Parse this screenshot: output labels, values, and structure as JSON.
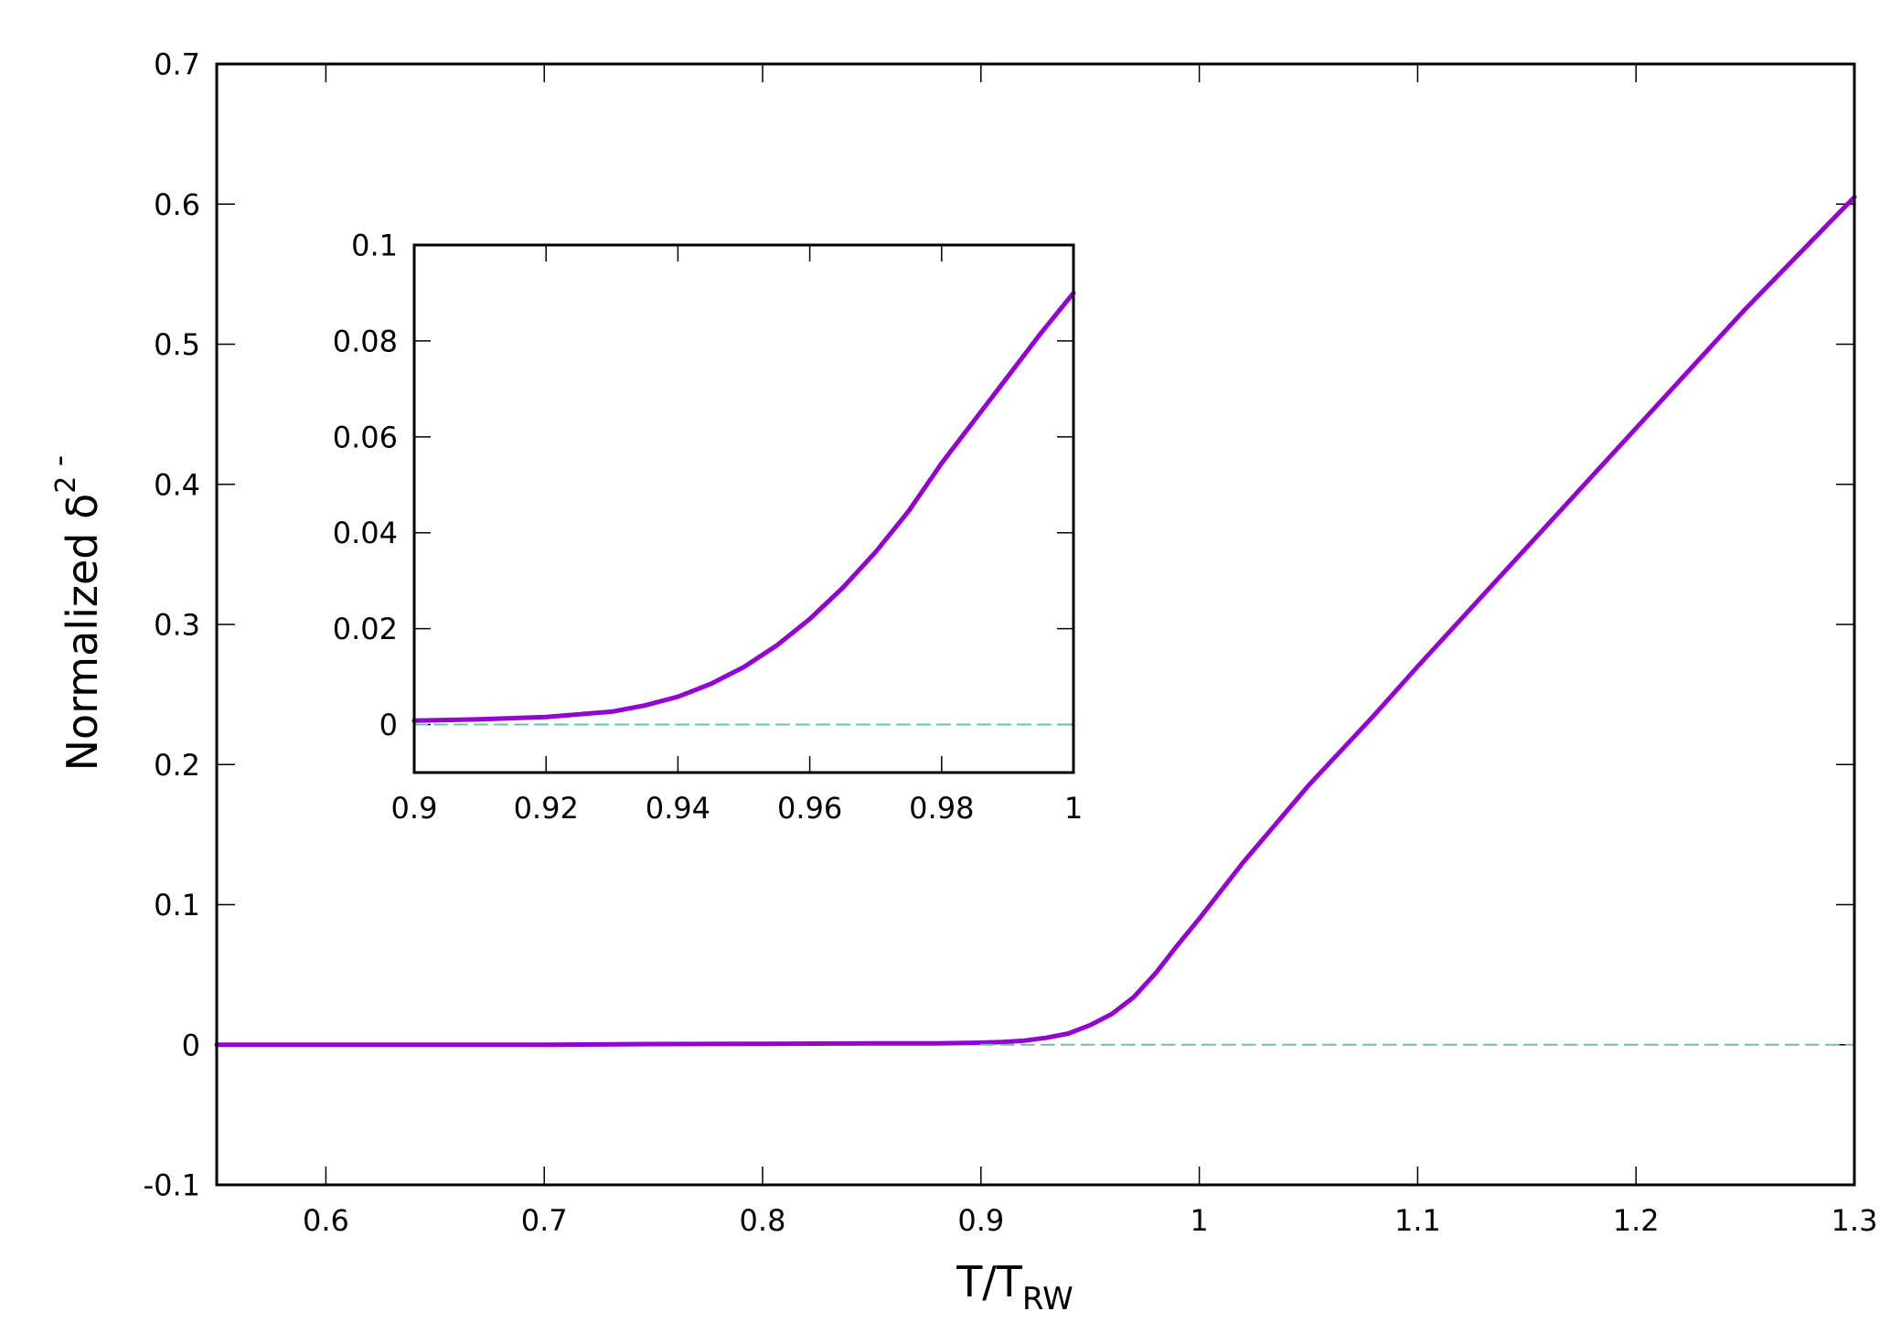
{
  "chart_data": [
    {
      "type": "line",
      "xlabel": {
        "main": "T/T",
        "sub": "RW"
      },
      "ylabel": {
        "main": "Normalized δ",
        "overbar": "-",
        "sup": "2"
      },
      "xlim": [
        0.55,
        1.3
      ],
      "ylim": [
        -0.1,
        0.7
      ],
      "xticks": [
        0.6,
        0.7,
        0.8,
        0.9,
        1,
        1.1,
        1.2,
        1.3
      ],
      "xtick_labels": [
        "0.6",
        "0.7",
        "0.8",
        "0.9",
        "1",
        "1.1",
        "1.2",
        "1.3"
      ],
      "yticks": [
        -0.1,
        0,
        0.1,
        0.2,
        0.3,
        0.4,
        0.5,
        0.6,
        0.7
      ],
      "ytick_labels": [
        "-0.1",
        "0",
        "0.1",
        "0.2",
        "0.3",
        "0.4",
        "0.5",
        "0.6",
        "0.7"
      ],
      "grid": false,
      "series": [
        {
          "color": "#9400d3",
          "style": "solid",
          "x": [
            0.55,
            0.6,
            0.65,
            0.7,
            0.75,
            0.8,
            0.85,
            0.88,
            0.9,
            0.91,
            0.92,
            0.93,
            0.94,
            0.95,
            0.96,
            0.97,
            0.98,
            0.99,
            1.0,
            1.02,
            1.05,
            1.08,
            1.1,
            1.15,
            1.2,
            1.25,
            1.3
          ],
          "y": [
            0.0,
            0.0,
            0.0,
            0.0,
            0.0005,
            0.0007,
            0.001,
            0.001,
            0.0015,
            0.002,
            0.003,
            0.005,
            0.008,
            0.014,
            0.022,
            0.034,
            0.051,
            0.071,
            0.09,
            0.13,
            0.185,
            0.235,
            0.27,
            0.355,
            0.44,
            0.525,
            0.605
          ]
        },
        {
          "color": "#66c2a5",
          "style": "dashed",
          "x": [
            0.9,
            1.3
          ],
          "y": [
            0,
            0
          ]
        }
      ]
    },
    {
      "type": "line",
      "inset": true,
      "xlim": [
        0.9,
        1.0
      ],
      "ylim": [
        -0.01,
        0.1
      ],
      "xticks": [
        0.9,
        0.92,
        0.94,
        0.96,
        0.98,
        1.0
      ],
      "xtick_labels": [
        "0.9",
        "0.92",
        "0.94",
        "0.96",
        "0.98",
        "1"
      ],
      "yticks": [
        0,
        0.02,
        0.04,
        0.06,
        0.08,
        0.1
      ],
      "ytick_labels": [
        "0",
        "0.02",
        "0.04",
        "0.06",
        "0.08",
        "0.1"
      ],
      "grid": false,
      "series": [
        {
          "color": "#9400d3",
          "style": "solid",
          "x": [
            0.9,
            0.91,
            0.92,
            0.93,
            0.935,
            0.94,
            0.945,
            0.95,
            0.955,
            0.96,
            0.965,
            0.97,
            0.975,
            0.98,
            0.985,
            0.99,
            0.995,
            1.0
          ],
          "y": [
            0.0008,
            0.0011,
            0.0016,
            0.0027,
            0.004,
            0.0058,
            0.0085,
            0.012,
            0.0165,
            0.022,
            0.0285,
            0.036,
            0.0445,
            0.0545,
            0.0635,
            0.0725,
            0.0815,
            0.09
          ]
        },
        {
          "color": "#66c2a5",
          "style": "dashed",
          "x": [
            0.9,
            1.0
          ],
          "y": [
            0,
            0
          ]
        }
      ]
    }
  ]
}
